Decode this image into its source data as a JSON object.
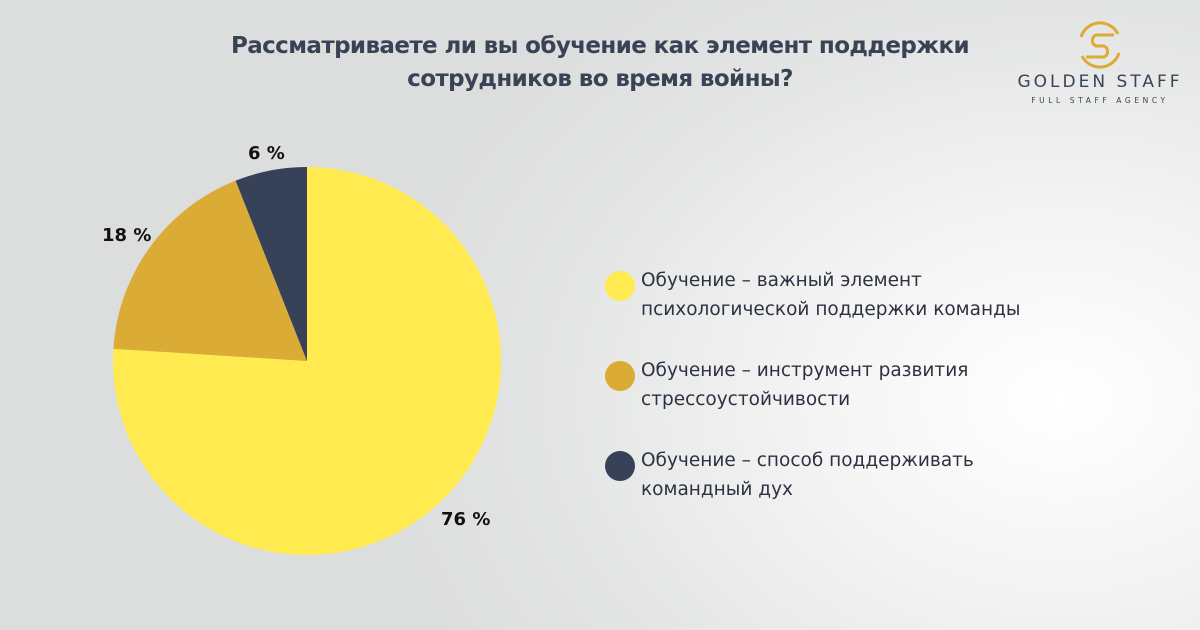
{
  "title": {
    "line1": "Рассматриваете ли вы обучение как элемент поддержки",
    "line2": "сотрудников во время войны?"
  },
  "logo": {
    "name": "GOLDEN STAFF",
    "tagline": "FULL STAFF AGENCY",
    "accent_color": "#dbac35",
    "text_color": "#3a4356"
  },
  "chart_data": {
    "type": "pie",
    "title": "Рассматриваете ли вы обучение как элемент поддержки сотрудников во время войны?",
    "categories": [
      "Обучение – важный элемент психологической поддержки команды",
      "Обучение – инструмент развития стрессоустойчивости",
      "Обучение – способ поддерживать командный дух"
    ],
    "values": [
      76,
      18,
      6
    ],
    "unit": "%",
    "colors": [
      "#ffeb4f",
      "#dbac35",
      "#374259"
    ],
    "data_labels": [
      "76 %",
      "18 %",
      "6 %"
    ],
    "start_angle": "12 o'clock, clockwise",
    "legend_position": "right"
  },
  "legend": {
    "items": [
      {
        "line1": "Обучение – важный элемент",
        "line2": "психологической поддержки команды",
        "color": "#ffeb4f"
      },
      {
        "line1": "Обучение – инструмент развития",
        "line2": "стрессоустойчивости",
        "color": "#dbac35"
      },
      {
        "line1": "Обучение – способ поддерживать",
        "line2": "командный дух",
        "color": "#374259"
      }
    ]
  }
}
